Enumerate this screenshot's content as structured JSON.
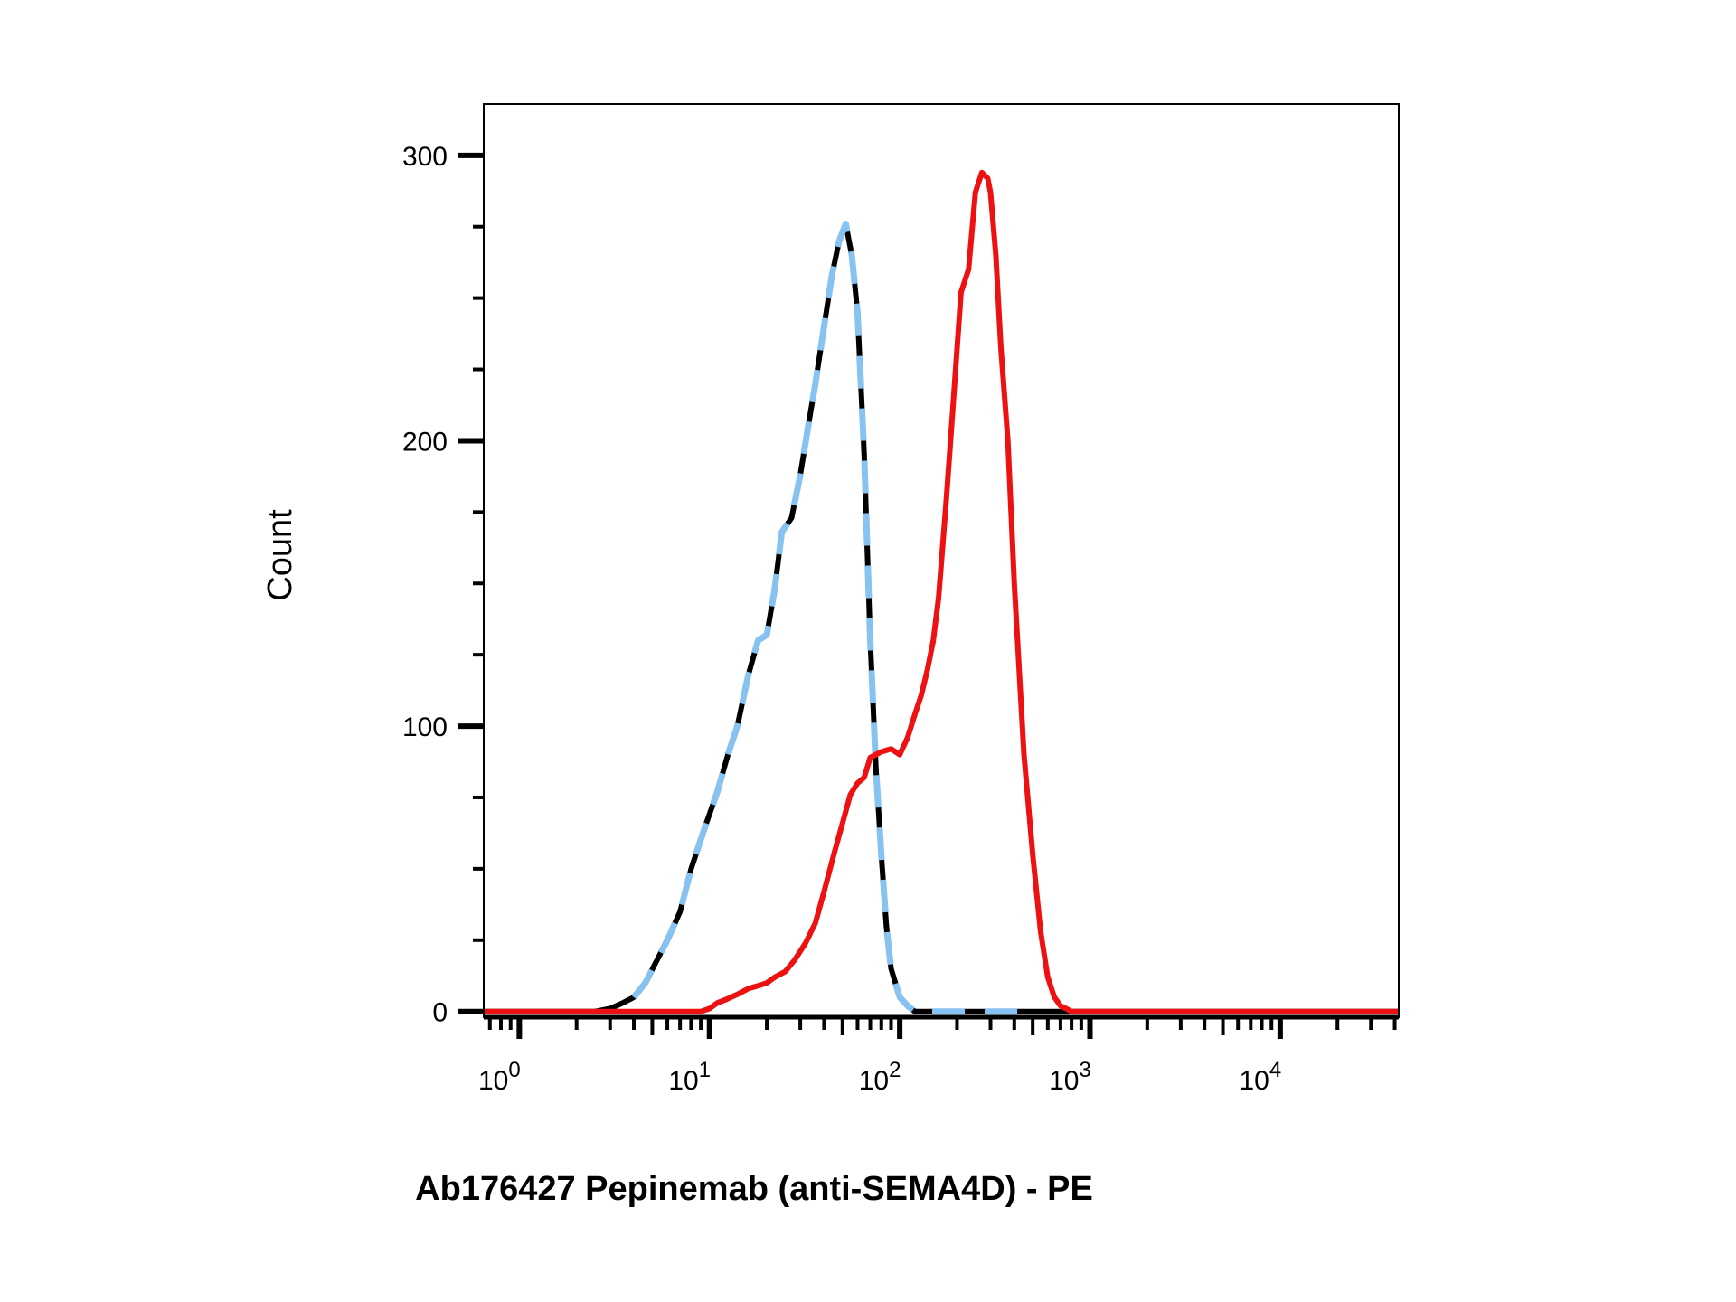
{
  "chart_data": {
    "type": "line",
    "title": "",
    "xlabel": "Ab176427 Pepinemab (anti-SEMA4D) - PE",
    "ylabel": "Count",
    "xscale": "log",
    "xlim": [
      0.65,
      42000
    ],
    "ylim": [
      -2,
      318
    ],
    "grid": false,
    "legend": "none",
    "y_ticks": [
      "0",
      "100",
      "200",
      "300"
    ],
    "x_ticks": [
      {
        "base": "10",
        "exp": "0"
      },
      {
        "base": "10",
        "exp": "1"
      },
      {
        "base": "10",
        "exp": "2"
      },
      {
        "base": "10",
        "exp": "3"
      },
      {
        "base": "10",
        "exp": "4"
      }
    ],
    "series": [
      {
        "color": "#000000",
        "dash": "solid",
        "x": [
          0.65,
          2.5,
          3,
          3.5,
          4,
          4.6,
          5.2,
          6,
          7,
          8,
          9.5,
          11,
          12.5,
          14,
          16,
          18,
          20,
          22,
          24,
          27,
          30,
          33,
          36,
          40,
          44,
          48,
          52,
          56,
          60,
          65,
          70,
          75,
          80,
          85,
          90,
          100,
          110,
          120,
          130,
          140,
          150,
          200,
          1000,
          42000
        ],
        "y": [
          0,
          0,
          1,
          3,
          5,
          10,
          17,
          25,
          35,
          50,
          65,
          77,
          90,
          100,
          118,
          130,
          132,
          148,
          168,
          173,
          188,
          205,
          220,
          240,
          258,
          270,
          276,
          265,
          245,
          195,
          130,
          85,
          55,
          30,
          15,
          5,
          2,
          0,
          0,
          0,
          0,
          0,
          0,
          0
        ]
      },
      {
        "color": "#88c2f0",
        "dash": "dashed",
        "x": [
          4,
          4.6,
          5.2,
          6,
          7,
          8,
          9.5,
          11,
          12.5,
          14,
          16,
          18,
          20,
          22,
          24,
          27,
          30,
          33,
          36,
          40,
          44,
          48,
          52,
          56,
          60,
          65,
          70,
          75,
          80,
          85,
          90,
          100,
          110,
          120,
          130,
          140,
          150,
          200,
          300,
          500
        ],
        "y": [
          5,
          10,
          17,
          25,
          35,
          50,
          65,
          77,
          90,
          100,
          118,
          130,
          132,
          148,
          168,
          173,
          188,
          205,
          220,
          240,
          258,
          270,
          276,
          265,
          245,
          195,
          130,
          85,
          55,
          30,
          15,
          5,
          2,
          0,
          0,
          0,
          0,
          0,
          0,
          0
        ]
      },
      {
        "color": "#ee1111",
        "dash": "solid",
        "x": [
          0.65,
          5,
          7,
          8,
          9,
          10,
          11,
          12,
          14,
          16,
          18,
          20,
          22,
          25,
          28,
          32,
          36,
          40,
          45,
          50,
          55,
          60,
          65,
          70,
          75,
          80,
          90,
          100,
          110,
          120,
          130,
          140,
          150,
          160,
          175,
          190,
          210,
          230,
          250,
          270,
          290,
          300,
          320,
          340,
          370,
          400,
          450,
          500,
          550,
          600,
          650,
          700,
          750,
          800,
          900,
          1000,
          42000
        ],
        "y": [
          0,
          0,
          0,
          0,
          0,
          1,
          3,
          4,
          6,
          8,
          9,
          10,
          12,
          14,
          18,
          24,
          31,
          42,
          55,
          66,
          76,
          80,
          82,
          89,
          90,
          91,
          92,
          90,
          96,
          104,
          111,
          120,
          130,
          145,
          178,
          211,
          252,
          260,
          287,
          294,
          292,
          287,
          265,
          233,
          200,
          150,
          90,
          55,
          28,
          12,
          5,
          2,
          1,
          0,
          0,
          0,
          0
        ]
      }
    ]
  }
}
